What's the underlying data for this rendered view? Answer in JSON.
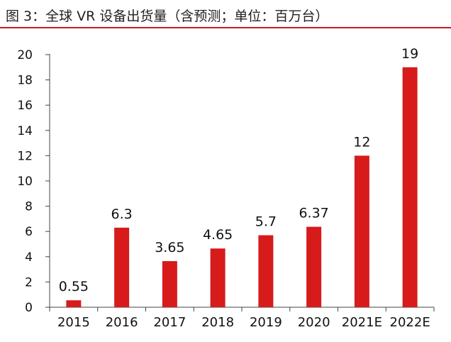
{
  "header": {
    "title": "图 3：全球 VR 设备出货量（含预测；单位：百万台）"
  },
  "colors": {
    "bar": "#d71a1a",
    "rule": "#c81e1e",
    "axis": "#444444"
  },
  "chart_data": {
    "type": "bar",
    "title": "图 3：全球 VR 设备出货量（含预测；单位：百万台）",
    "categories": [
      "2015",
      "2016",
      "2017",
      "2018",
      "2019",
      "2020",
      "2021E",
      "2022E"
    ],
    "values": [
      0.55,
      6.3,
      3.65,
      4.65,
      5.7,
      6.37,
      12,
      19
    ],
    "value_labels": [
      "0.55",
      "6.3",
      "3.65",
      "4.65",
      "5.7",
      "6.37",
      "12",
      "19"
    ],
    "yticks": [
      0,
      2,
      4,
      6,
      8,
      10,
      12,
      14,
      16,
      18,
      20
    ],
    "ylim": [
      0,
      20
    ],
    "xlabel": "",
    "ylabel": "",
    "grid": false,
    "legend": "none"
  }
}
